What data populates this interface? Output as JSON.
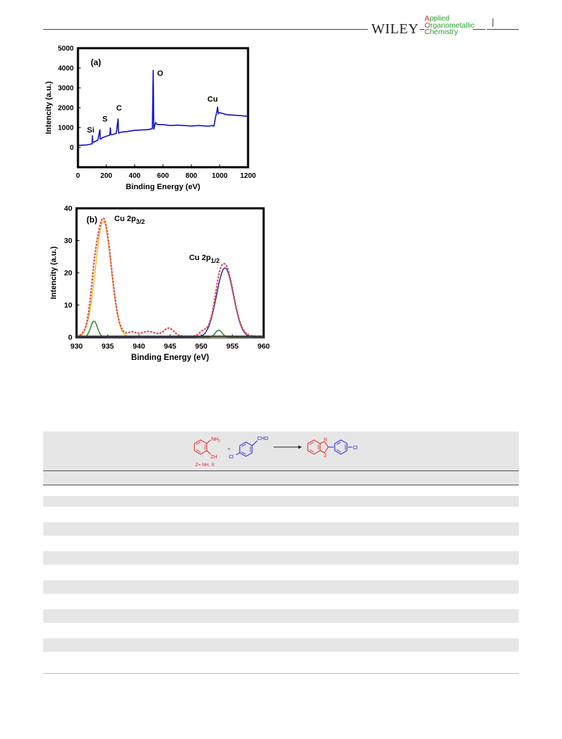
{
  "header": {
    "publisher": "WILEY",
    "journal_line1": "Applied",
    "journal_line2": "Organometallic",
    "journal_line3": "Chemistry",
    "journal_initial1": "A",
    "journal_rest1": "pplied",
    "journal_initial2": "O",
    "journal_rest2": "rganometallic",
    "journal_initial3": "C",
    "journal_rest3": "hemistry"
  },
  "figure": {
    "panel_a": {
      "label": "(a)",
      "chart_data": {
        "type": "line",
        "xlabel": "Binding Energy (eV)",
        "ylabel": "Intencity (a.u.)",
        "xlim": [
          0,
          1200
        ],
        "ylim": [
          -1000,
          5000
        ],
        "xticks": [
          0,
          200,
          400,
          600,
          800,
          1000,
          1200
        ],
        "yticks": [
          0,
          1000,
          2000,
          3000,
          4000,
          5000
        ],
        "color": "#1010cc",
        "x": [
          0,
          60,
          100,
          102,
          104,
          110,
          140,
          155,
          157,
          160,
          170,
          200,
          225,
          228,
          232,
          240,
          270,
          283,
          286,
          290,
          300,
          350,
          400,
          450,
          500,
          525,
          531,
          535,
          540,
          548,
          560,
          600,
          650,
          700,
          750,
          800,
          850,
          900,
          930,
          940,
          960,
          970,
          980,
          985,
          990,
          1000,
          1050,
          1100,
          1150,
          1200
        ],
        "y": [
          100,
          120,
          180,
          600,
          250,
          260,
          360,
          900,
          420,
          430,
          480,
          560,
          620,
          1000,
          650,
          640,
          700,
          1450,
          760,
          720,
          760,
          800,
          860,
          880,
          900,
          950,
          3900,
          900,
          1050,
          1250,
          1150,
          1150,
          1100,
          1120,
          1100,
          1080,
          1100,
          1080,
          1070,
          1100,
          1080,
          1500,
          1800,
          2050,
          1700,
          1750,
          1650,
          1620,
          1600,
          1560
        ],
        "annotations": [
          {
            "text": "Si",
            "x": 90,
            "y": 750
          },
          {
            "text": "S",
            "x": 190,
            "y": 1300
          },
          {
            "text": "C",
            "x": 290,
            "y": 1850
          },
          {
            "text": "O",
            "x": 580,
            "y": 3600
          },
          {
            "text": "Cu",
            "x": 950,
            "y": 2300
          }
        ]
      }
    },
    "panel_b": {
      "label": "(b)",
      "chart_data": {
        "type": "line",
        "xlabel": "Binding Energy (eV)",
        "ylabel": "Intencity (a.u.)",
        "xlim": [
          930,
          960
        ],
        "ylim": [
          0,
          40
        ],
        "xticks": [
          930,
          935,
          940,
          945,
          950,
          955,
          960
        ],
        "yticks": [
          0,
          10,
          20,
          30,
          40
        ],
        "peak_labels": [
          {
            "base": "Cu 2p",
            "sub": "3/2",
            "x": 938.5,
            "y": 36
          },
          {
            "base": "Cu 2p",
            "sub": "1/2",
            "x": 950.5,
            "y": 24
          }
        ],
        "series": [
          {
            "name": "",
            "color": "#e05050",
            "kind": "envelope",
            "peaks": [
              [
                934.3,
                36.5,
                1.25
              ],
              [
                932.8,
                5,
                0.55
              ],
              [
                953.8,
                22,
                1.35
              ],
              [
                952.8,
                2.2,
                0.55
              ],
              [
                938.8,
                1.2,
                0.7
              ],
              [
                941.5,
                1.5,
                1.2
              ],
              [
                944.8,
                2.5,
                0.8
              ],
              [
                950.2,
                1.2,
                0.55
              ]
            ]
          },
          {
            "name": "",
            "color": "#e8c020",
            "kind": "component",
            "peaks": [
              [
                934.3,
                36.0,
                1.25
              ]
            ]
          },
          {
            "name": "",
            "color": "#208020",
            "kind": "component",
            "peaks": [
              [
                932.8,
                5.0,
                0.55
              ],
              [
                952.8,
                2.2,
                0.55
              ]
            ]
          },
          {
            "name": "",
            "color": "#2020a0",
            "kind": "component",
            "peaks": [
              [
                953.8,
                21.5,
                1.35
              ]
            ]
          }
        ]
      }
    }
  },
  "table": {
    "scheme": {
      "z_label": "Z= NH, S",
      "nh2": "NH",
      "nh2_sub": "2",
      "zh": "ZH",
      "plus": "+",
      "cl_left": "Cl",
      "cho": "CHO",
      "n_atom": "N",
      "z_atom": "Z",
      "cl_right": "Cl",
      "color_red": "#e02020",
      "color_blue": "#2020e0"
    }
  }
}
